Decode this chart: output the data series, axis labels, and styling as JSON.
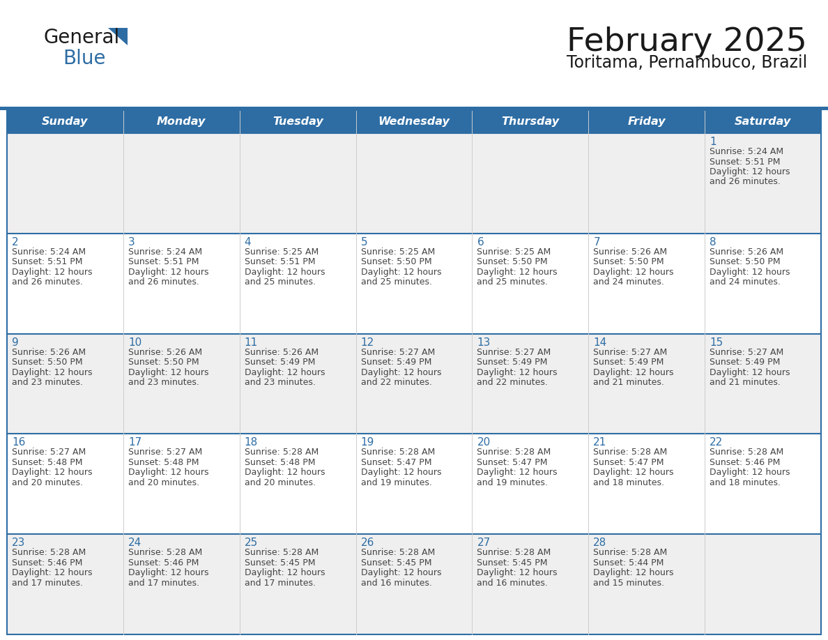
{
  "title": "February 2025",
  "subtitle": "Toritama, Pernambuco, Brazil",
  "header_bg": "#2E6DA4",
  "header_text_color": "#FFFFFF",
  "day_number_color": "#2E6DA4",
  "border_color": "#2E6DA4",
  "days_of_week": [
    "Sunday",
    "Monday",
    "Tuesday",
    "Wednesday",
    "Thursday",
    "Friday",
    "Saturday"
  ],
  "row_bg": [
    "#EFEFEF",
    "#FFFFFF",
    "#EFEFEF",
    "#FFFFFF",
    "#EFEFEF"
  ],
  "calendar_data": [
    [
      null,
      null,
      null,
      null,
      null,
      null,
      {
        "day": 1,
        "sunrise": "5:24 AM",
        "sunset": "5:51 PM",
        "daylight_suffix": "26 minutes."
      }
    ],
    [
      {
        "day": 2,
        "sunrise": "5:24 AM",
        "sunset": "5:51 PM",
        "daylight_suffix": "26 minutes."
      },
      {
        "day": 3,
        "sunrise": "5:24 AM",
        "sunset": "5:51 PM",
        "daylight_suffix": "26 minutes."
      },
      {
        "day": 4,
        "sunrise": "5:25 AM",
        "sunset": "5:51 PM",
        "daylight_suffix": "25 minutes."
      },
      {
        "day": 5,
        "sunrise": "5:25 AM",
        "sunset": "5:50 PM",
        "daylight_suffix": "25 minutes."
      },
      {
        "day": 6,
        "sunrise": "5:25 AM",
        "sunset": "5:50 PM",
        "daylight_suffix": "25 minutes."
      },
      {
        "day": 7,
        "sunrise": "5:26 AM",
        "sunset": "5:50 PM",
        "daylight_suffix": "24 minutes."
      },
      {
        "day": 8,
        "sunrise": "5:26 AM",
        "sunset": "5:50 PM",
        "daylight_suffix": "24 minutes."
      }
    ],
    [
      {
        "day": 9,
        "sunrise": "5:26 AM",
        "sunset": "5:50 PM",
        "daylight_suffix": "23 minutes."
      },
      {
        "day": 10,
        "sunrise": "5:26 AM",
        "sunset": "5:50 PM",
        "daylight_suffix": "23 minutes."
      },
      {
        "day": 11,
        "sunrise": "5:26 AM",
        "sunset": "5:49 PM",
        "daylight_suffix": "23 minutes."
      },
      {
        "day": 12,
        "sunrise": "5:27 AM",
        "sunset": "5:49 PM",
        "daylight_suffix": "22 minutes."
      },
      {
        "day": 13,
        "sunrise": "5:27 AM",
        "sunset": "5:49 PM",
        "daylight_suffix": "22 minutes."
      },
      {
        "day": 14,
        "sunrise": "5:27 AM",
        "sunset": "5:49 PM",
        "daylight_suffix": "21 minutes."
      },
      {
        "day": 15,
        "sunrise": "5:27 AM",
        "sunset": "5:49 PM",
        "daylight_suffix": "21 minutes."
      }
    ],
    [
      {
        "day": 16,
        "sunrise": "5:27 AM",
        "sunset": "5:48 PM",
        "daylight_suffix": "20 minutes."
      },
      {
        "day": 17,
        "sunrise": "5:27 AM",
        "sunset": "5:48 PM",
        "daylight_suffix": "20 minutes."
      },
      {
        "day": 18,
        "sunrise": "5:28 AM",
        "sunset": "5:48 PM",
        "daylight_suffix": "20 minutes."
      },
      {
        "day": 19,
        "sunrise": "5:28 AM",
        "sunset": "5:47 PM",
        "daylight_suffix": "19 minutes."
      },
      {
        "day": 20,
        "sunrise": "5:28 AM",
        "sunset": "5:47 PM",
        "daylight_suffix": "19 minutes."
      },
      {
        "day": 21,
        "sunrise": "5:28 AM",
        "sunset": "5:47 PM",
        "daylight_suffix": "18 minutes."
      },
      {
        "day": 22,
        "sunrise": "5:28 AM",
        "sunset": "5:46 PM",
        "daylight_suffix": "18 minutes."
      }
    ],
    [
      {
        "day": 23,
        "sunrise": "5:28 AM",
        "sunset": "5:46 PM",
        "daylight_suffix": "17 minutes."
      },
      {
        "day": 24,
        "sunrise": "5:28 AM",
        "sunset": "5:46 PM",
        "daylight_suffix": "17 minutes."
      },
      {
        "day": 25,
        "sunrise": "5:28 AM",
        "sunset": "5:45 PM",
        "daylight_suffix": "17 minutes."
      },
      {
        "day": 26,
        "sunrise": "5:28 AM",
        "sunset": "5:45 PM",
        "daylight_suffix": "16 minutes."
      },
      {
        "day": 27,
        "sunrise": "5:28 AM",
        "sunset": "5:45 PM",
        "daylight_suffix": "16 minutes."
      },
      {
        "day": 28,
        "sunrise": "5:28 AM",
        "sunset": "5:44 PM",
        "daylight_suffix": "15 minutes."
      },
      null
    ]
  ]
}
